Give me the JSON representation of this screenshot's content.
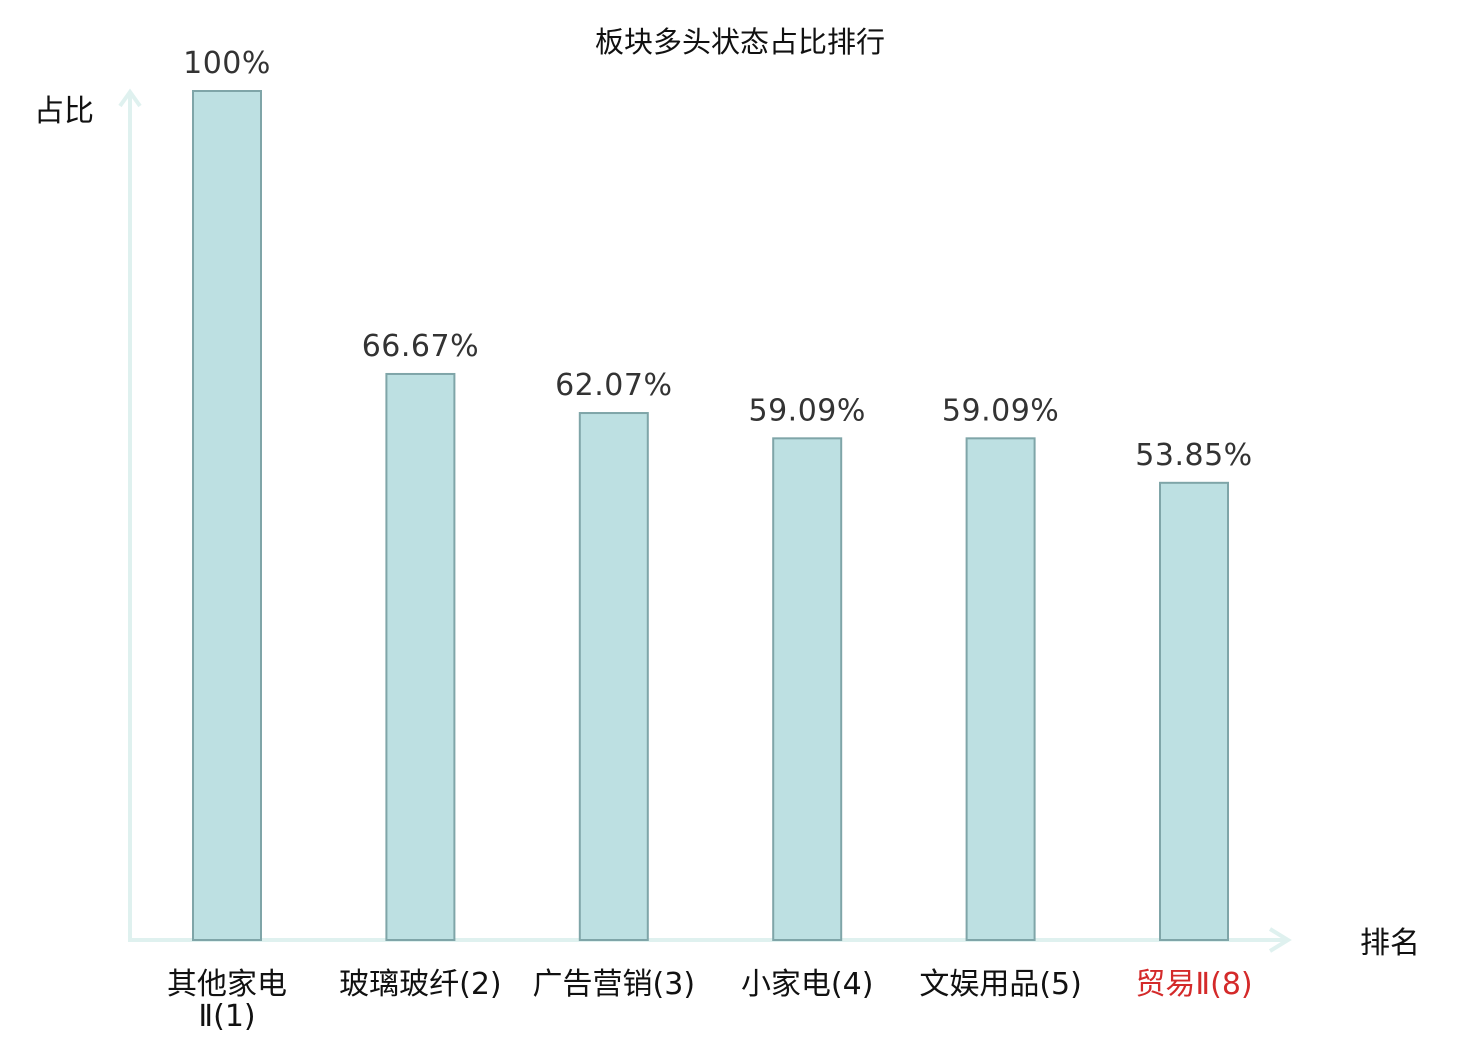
{
  "chart_data": {
    "type": "bar",
    "title": "板块多头状态占比排行",
    "xlabel": "排名",
    "ylabel": "占比",
    "categories": [
      [
        "其他家电",
        "Ⅱ(1)"
      ],
      [
        "玻璃玻纤(2)"
      ],
      [
        "广告营销(3)"
      ],
      [
        "小家电(4)"
      ],
      [
        "文娱用品(5)"
      ],
      [
        "贸易Ⅱ(8)"
      ]
    ],
    "values": [
      100,
      66.67,
      62.07,
      59.09,
      59.09,
      53.85
    ],
    "value_labels": [
      "100%",
      "66.67%",
      "62.07%",
      "59.09%",
      "59.09%",
      "53.85%"
    ],
    "highlighted_category_index": 5,
    "ylim": [
      0,
      100
    ],
    "grid": false,
    "legend": "none",
    "colors": {
      "bar_fill": "#bde0e2",
      "bar_stroke": "#7fa5a8",
      "axis": "#dff1ef",
      "highlight_text": "#d42a2a"
    }
  }
}
